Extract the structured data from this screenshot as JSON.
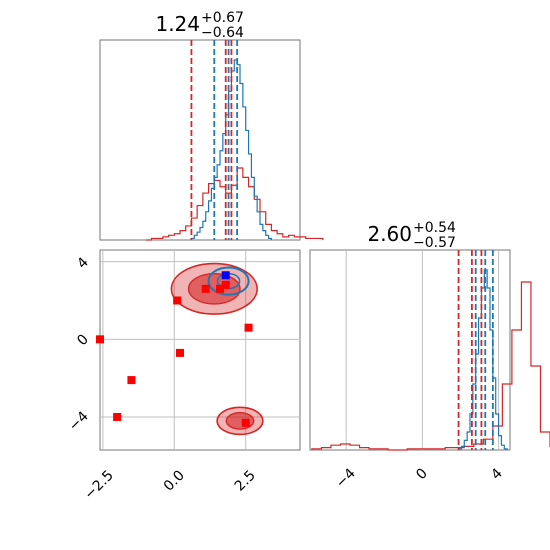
{
  "colors": {
    "red": "#d62728",
    "blue": "#1f77b4",
    "marker_red": "#ff0000",
    "marker_blue": "#0000ff"
  },
  "chart_data": [
    {
      "type": "histogram",
      "panel": "top-left",
      "title": {
        "main": "1.24",
        "sup": "+0.67",
        "sub": "−0.64"
      },
      "xlim": [
        -2.6,
        4.4
      ],
      "quantiles": {
        "red": [
          0.6,
          1.8,
          2.0
        ],
        "blue": [
          1.4,
          1.9,
          2.2
        ]
      },
      "series": [
        {
          "color": "red",
          "bin_start": -1.0,
          "bin_width": 0.2,
          "values": [
            0,
            1,
            1,
            2,
            3,
            4,
            6,
            9,
            14,
            22,
            30,
            36,
            38,
            34,
            30,
            35,
            46,
            40,
            34,
            26,
            18,
            10,
            6,
            4,
            2,
            3,
            2,
            2,
            1,
            1,
            1
          ]
        },
        {
          "color": "blue",
          "bin_start": 0.6,
          "bin_width": 0.1,
          "values": [
            1,
            3,
            5,
            8,
            12,
            18,
            25,
            33,
            40,
            48,
            57,
            68,
            80,
            95,
            108,
            115,
            112,
            100,
            85,
            70,
            55,
            40,
            28,
            18,
            10,
            6,
            3,
            1
          ]
        }
      ]
    },
    {
      "type": "histogram",
      "panel": "bottom-right",
      "title": {
        "main": "2.60",
        "sup": "+0.54",
        "sub": "−0.57"
      },
      "xlim": [
        -5.9,
        4.6
      ],
      "xticks": [
        "−4",
        "0",
        "4"
      ],
      "quantiles": {
        "red": [
          1.9,
          2.6,
          3.1
        ],
        "blue": [
          2.8,
          3.3,
          3.7
        ]
      },
      "series": [
        {
          "color": "red",
          "bin_start": -5.8,
          "bin_width": 0.5,
          "values": [
            1,
            2,
            4,
            5,
            4,
            2,
            1,
            1,
            0,
            0,
            1,
            1,
            1,
            1,
            2,
            2,
            3,
            5,
            9,
            20,
            55,
            100,
            140,
            70,
            15,
            3,
            1,
            0
          ]
        },
        {
          "color": "blue",
          "bin_start": 1.9,
          "bin_width": 0.15,
          "values": [
            1,
            3,
            8,
            15,
            30,
            55,
            80,
            110,
            135,
            150,
            135,
            100,
            60,
            30,
            12,
            4,
            1
          ]
        }
      ]
    },
    {
      "type": "scatter",
      "panel": "bottom-left",
      "xlim": [
        -2.6,
        4.4
      ],
      "ylim": [
        -5.7,
        4.6
      ],
      "xticks": [
        "−2.5",
        "0.0",
        "2.5"
      ],
      "yticks": [
        "4",
        "0",
        "−4"
      ],
      "points_red": [
        [
          -2.6,
          0.0
        ],
        [
          -2.0,
          -4.0
        ],
        [
          -1.5,
          -2.1
        ],
        [
          0.1,
          2.0
        ],
        [
          0.2,
          -0.7
        ],
        [
          1.1,
          2.6
        ],
        [
          1.6,
          2.6
        ],
        [
          1.8,
          2.8
        ],
        [
          2.6,
          0.6
        ],
        [
          2.5,
          -4.3
        ]
      ],
      "points_blue": [
        [
          1.8,
          3.3
        ]
      ],
      "contours": [
        {
          "color": "red",
          "center": [
            1.4,
            2.6
          ],
          "spread": [
            1.5,
            1.3
          ]
        },
        {
          "color": "red",
          "center": [
            2.3,
            -4.2
          ],
          "spread": [
            0.8,
            0.7
          ]
        },
        {
          "color": "blue",
          "center": [
            1.9,
            3.0
          ],
          "spread": [
            0.7,
            0.7
          ]
        }
      ]
    }
  ]
}
